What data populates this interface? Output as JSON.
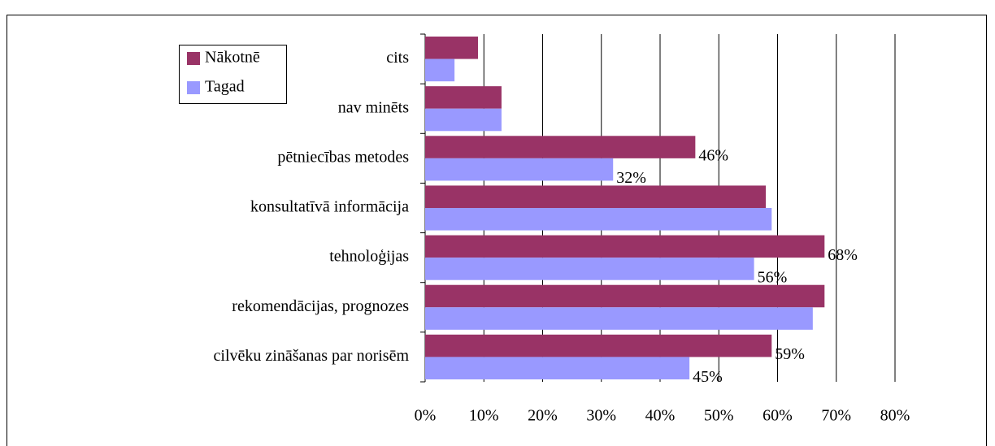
{
  "chart_data": {
    "type": "bar",
    "orientation": "horizontal",
    "categories": [
      "cits",
      "nav minēts",
      "pētniecības metodes",
      "konsultatīvā informācija",
      "tehnoloģijas",
      "rekomendācijas, prognozes",
      "cilvēku zināšanas par norisēm"
    ],
    "series": [
      {
        "name": "Nākotnē",
        "color": "#993366",
        "values": [
          9,
          13,
          46,
          58,
          68,
          68,
          59
        ],
        "value_labels": [
          null,
          null,
          "46%",
          null,
          "68%",
          null,
          "59%"
        ]
      },
      {
        "name": "Tagad",
        "color": "#9999ff",
        "values": [
          5,
          13,
          32,
          59,
          56,
          66,
          45
        ],
        "value_labels": [
          null,
          null,
          "32%",
          null,
          "56%",
          null,
          "45%"
        ]
      }
    ],
    "xlim": [
      0,
      80
    ],
    "xticks": [
      {
        "value": 0,
        "label": "0%"
      },
      {
        "value": 10,
        "label": "10%"
      },
      {
        "value": 20,
        "label": "20%"
      },
      {
        "value": 30,
        "label": "30%"
      },
      {
        "value": 40,
        "label": "40%"
      },
      {
        "value": 50,
        "label": "50%"
      },
      {
        "value": 60,
        "label": "60%"
      },
      {
        "value": 70,
        "label": "70%"
      },
      {
        "value": 80,
        "label": "80%"
      }
    ],
    "grid": true,
    "legend": "top-left"
  }
}
